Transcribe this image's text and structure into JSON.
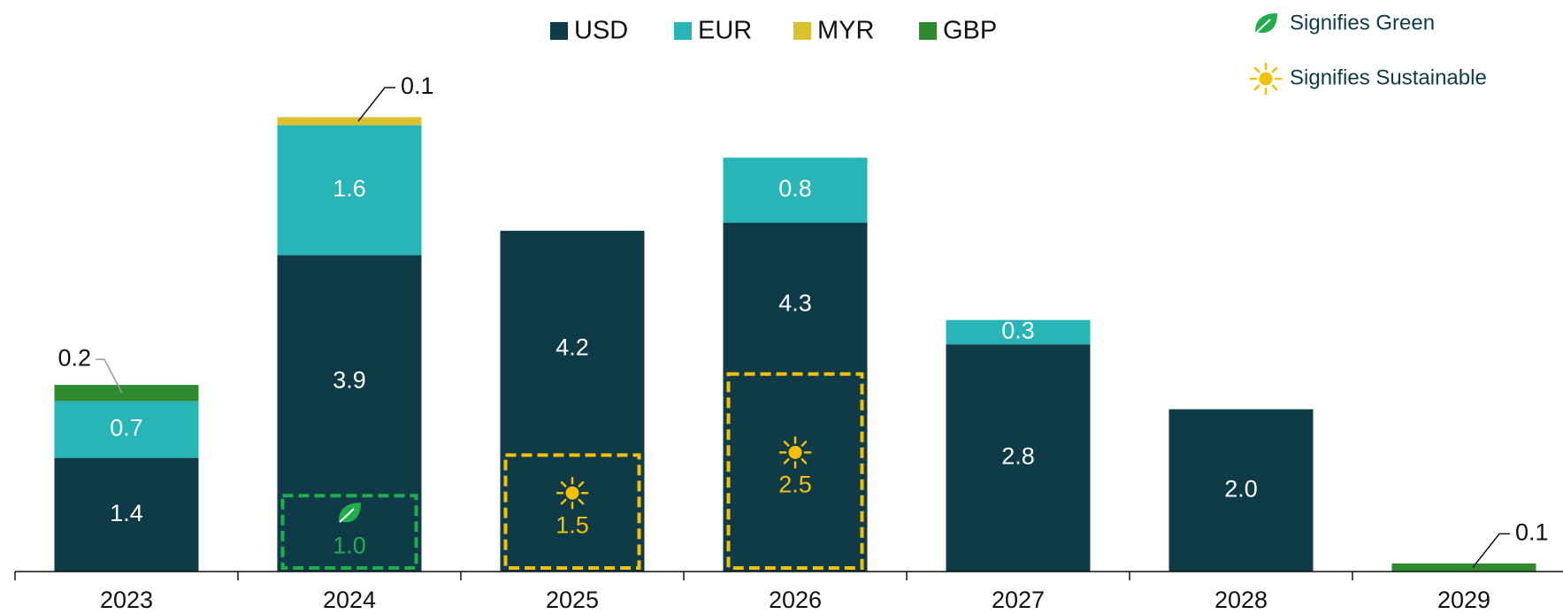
{
  "chart_data": {
    "type": "stacked_bar",
    "categories": [
      "2023",
      "2024",
      "2025",
      "2026",
      "2027",
      "2028",
      "2029"
    ],
    "series": [
      {
        "name": "USD",
        "color": "#0f3a47",
        "values": [
          1.4,
          3.9,
          4.2,
          4.3,
          2.8,
          2.0,
          null
        ],
        "value_labels": [
          "1.4",
          "3.9",
          "4.2",
          "4.3",
          "2.8",
          "2.0",
          null
        ]
      },
      {
        "name": "EUR",
        "color": "#27b5b8",
        "values": [
          0.7,
          1.6,
          null,
          0.8,
          0.3,
          null,
          null
        ],
        "value_labels": [
          "0.7",
          "1.6",
          null,
          "0.8",
          "0.3",
          null,
          null
        ]
      },
      {
        "name": "MYR",
        "color": "#dcc12e",
        "values": [
          null,
          0.1,
          null,
          null,
          null,
          null,
          null
        ],
        "value_labels": [
          null,
          "0.1",
          null,
          null,
          null,
          null,
          null
        ]
      },
      {
        "name": "GBP",
        "color": "#2f8a2f",
        "values": [
          0.2,
          null,
          null,
          null,
          null,
          null,
          0.1
        ],
        "value_labels": [
          "0.2",
          null,
          null,
          null,
          null,
          null,
          "0.1"
        ]
      }
    ],
    "highlights": [
      {
        "label": "Signifies Green",
        "color": "#1fae4c",
        "categories": [
          "2024"
        ],
        "values": [
          1.0
        ],
        "value_labels": [
          "1.0"
        ]
      },
      {
        "label": "Signifies Sustainable",
        "color": "#f5c000",
        "categories": [
          "2025",
          "2026"
        ],
        "values": [
          1.5,
          2.5
        ],
        "value_labels": [
          "1.5",
          "2.5"
        ]
      }
    ],
    "ylim": [
      0,
      7
    ],
    "legend": "top"
  }
}
